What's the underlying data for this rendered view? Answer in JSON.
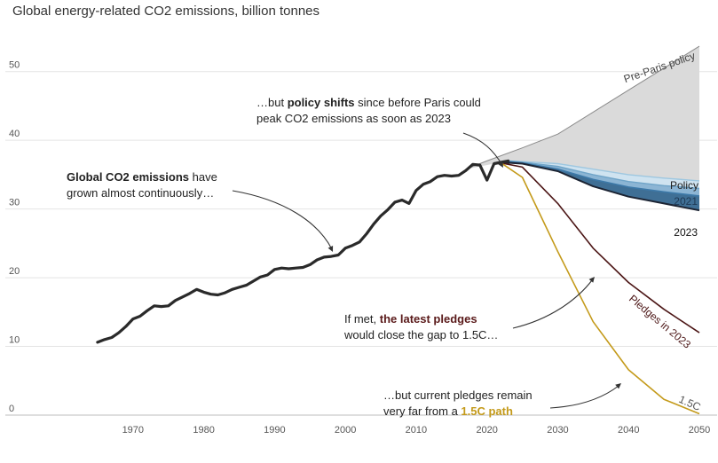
{
  "title": "Global energy-related CO2 emissions, billion tonnes",
  "chart_data": {
    "type": "line",
    "title": "Global energy-related CO2 emissions, billion tonnes",
    "xlim": [
      1962,
      2050
    ],
    "ylim": [
      0,
      55
    ],
    "x_ticks": [
      1970,
      1980,
      1990,
      2000,
      2010,
      2020,
      2030,
      2040,
      2050
    ],
    "y_ticks": [
      0,
      10,
      20,
      30,
      40,
      50
    ],
    "grid": "horizontal",
    "historical": {
      "x": [
        1965,
        1966,
        1967,
        1968,
        1969,
        1970,
        1971,
        1972,
        1973,
        1974,
        1975,
        1976,
        1977,
        1978,
        1979,
        1980,
        1981,
        1982,
        1983,
        1984,
        1985,
        1986,
        1987,
        1988,
        1989,
        1990,
        1991,
        1992,
        1993,
        1994,
        1995,
        1996,
        1997,
        1998,
        1999,
        2000,
        2001,
        2002,
        2003,
        2004,
        2005,
        2006,
        2007,
        2008,
        2009,
        2010,
        2011,
        2012,
        2013,
        2014,
        2015,
        2016,
        2017,
        2018,
        2019,
        2020,
        2021,
        2022,
        2023
      ],
      "y": [
        10.6,
        11.0,
        11.3,
        12.0,
        12.9,
        14.0,
        14.4,
        15.2,
        15.9,
        15.8,
        15.9,
        16.7,
        17.2,
        17.7,
        18.3,
        17.9,
        17.6,
        17.5,
        17.8,
        18.3,
        18.6,
        18.9,
        19.5,
        20.1,
        20.4,
        21.2,
        21.4,
        21.3,
        21.4,
        21.5,
        21.9,
        22.6,
        23.0,
        23.1,
        23.3,
        24.3,
        24.7,
        25.2,
        26.4,
        27.8,
        29.0,
        29.9,
        31.0,
        31.3,
        30.8,
        32.7,
        33.6,
        34.0,
        34.7,
        34.9,
        34.8,
        34.9,
        35.6,
        36.5,
        36.4,
        34.2,
        36.6,
        36.8,
        37.0
      ]
    },
    "series": [
      {
        "name": "Pre-Paris policy",
        "color": "#8a8a8a",
        "x": [
          2017,
          2020,
          2025,
          2030,
          2040,
          2050
        ],
        "y": [
          35.8,
          37.0,
          38.9,
          40.9,
          47.3,
          53.7
        ]
      },
      {
        "name": "Policy",
        "color": "#9ec7e0",
        "x": [
          2023,
          2025,
          2030,
          2035,
          2040,
          2045,
          2050
        ],
        "y": [
          37.0,
          36.9,
          36.6,
          35.8,
          35.0,
          34.5,
          34.1
        ]
      },
      {
        "name": "2021",
        "color": "#6fa4c8",
        "x": [
          2023,
          2025,
          2030,
          2035,
          2040,
          2045,
          2050
        ],
        "y": [
          37.0,
          36.8,
          36.2,
          35.0,
          34.0,
          33.4,
          33.0
        ]
      },
      {
        "name": "2022",
        "color": "#3d79a8",
        "x": [
          2023,
          2025,
          2030,
          2035,
          2040,
          2045,
          2050
        ],
        "y": [
          36.9,
          36.7,
          35.8,
          34.3,
          33.2,
          32.5,
          31.9
        ]
      },
      {
        "name": "2023",
        "color": "#1c2433",
        "x": [
          2022,
          2025,
          2030,
          2035,
          2040,
          2045,
          2050
        ],
        "y": [
          36.8,
          36.6,
          35.5,
          33.3,
          31.8,
          30.8,
          29.8
        ]
      },
      {
        "name": "Pledges in 2023",
        "color": "#4b1515",
        "x": [
          2022,
          2025,
          2030,
          2035,
          2040,
          2045,
          2050
        ],
        "y": [
          36.7,
          36.1,
          30.8,
          24.3,
          19.3,
          15.4,
          12.0
        ]
      },
      {
        "name": "1.5C",
        "color": "#c49a1a",
        "x": [
          2022,
          2025,
          2030,
          2035,
          2040,
          2045,
          2050
        ],
        "y": [
          36.7,
          34.6,
          23.8,
          13.6,
          6.6,
          2.3,
          0.2
        ]
      }
    ],
    "annotations": [
      {
        "lines": [
          [
            {
              "t": "Global CO2 emissions",
              "b": true
            },
            {
              "t": " have",
              "b": false
            }
          ],
          [
            {
              "t": "grown almost continuously…",
              "b": false
            }
          ]
        ]
      },
      {
        "lines": [
          [
            {
              "t": "…but ",
              "b": false
            },
            {
              "t": "policy shifts",
              "b": true
            },
            {
              "t": " since before Paris could",
              "b": false
            }
          ],
          [
            {
              "t": "peak CO2 emissions as soon as 2023",
              "b": false
            }
          ]
        ]
      },
      {
        "lines": [
          [
            {
              "t": "If met, ",
              "b": false
            },
            {
              "t": "the latest pledges",
              "b": true,
              "color": "#5a1a1a"
            }
          ],
          [
            {
              "t": "would close the gap to 1.5C…",
              "b": false
            }
          ]
        ]
      },
      {
        "lines": [
          [
            {
              "t": "…but current pledges remain",
              "b": false
            }
          ],
          [
            {
              "t": "very far from a ",
              "b": false
            },
            {
              "t": "1.5C path",
              "b": true,
              "color": "#c49a1a"
            }
          ]
        ]
      }
    ]
  }
}
